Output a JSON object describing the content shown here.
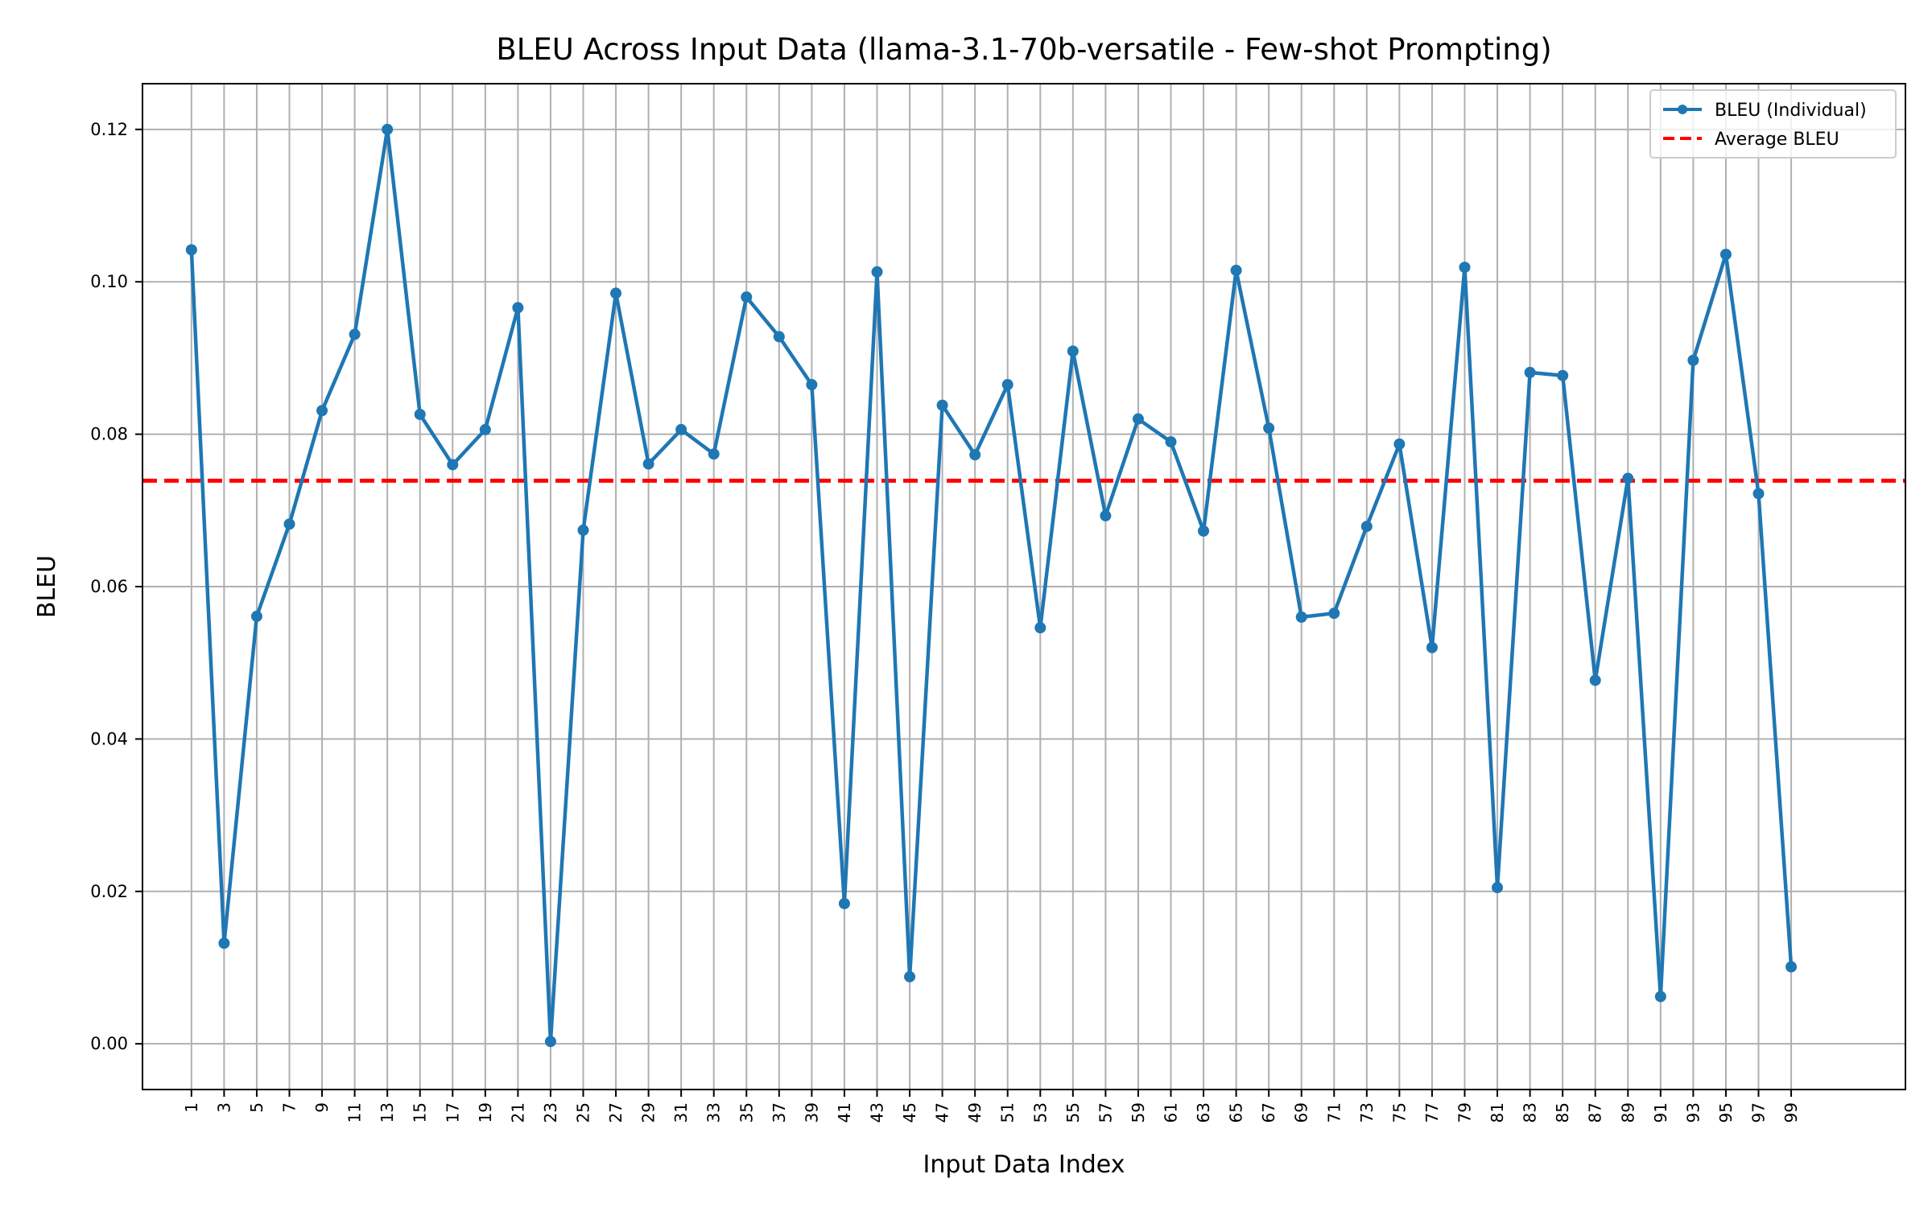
{
  "chart_data": {
    "type": "line",
    "title": "BLEU Across Input Data (llama-3.1-70b-versatile - Few-shot Prompting)",
    "xlabel": "Input Data Index",
    "ylabel": "BLEU",
    "xlim": [
      -1.5,
      52.5
    ],
    "ylim": [
      -0.006,
      0.126
    ],
    "x_tick_labels": [
      "1",
      "3",
      "5",
      "7",
      "9",
      "11",
      "13",
      "15",
      "17",
      "19",
      "21",
      "23",
      "25",
      "27",
      "29",
      "31",
      "33",
      "35",
      "37",
      "39",
      "41",
      "43",
      "45",
      "47",
      "49",
      "51",
      "53",
      "55",
      "57",
      "59",
      "61",
      "63",
      "65",
      "67",
      "69",
      "71",
      "73",
      "75",
      "77",
      "79",
      "81",
      "83",
      "85",
      "87",
      "89",
      "91",
      "93",
      "95",
      "97",
      "99"
    ],
    "y_ticks": [
      0.0,
      0.02,
      0.04,
      0.06,
      0.08,
      0.1,
      0.12
    ],
    "y_tick_labels": [
      "0.00",
      "0.02",
      "0.04",
      "0.06",
      "0.08",
      "0.10",
      "0.12"
    ],
    "grid": true,
    "legend_position": "top-right",
    "series": [
      {
        "name": "BLEU (Individual)",
        "kind": "line-with-markers",
        "color": "#1f77b4",
        "values": [
          0.1042,
          0.0132,
          0.0561,
          0.0682,
          0.0831,
          0.0931,
          0.12,
          0.0826,
          0.076,
          0.0806,
          0.0966,
          0.0003,
          0.0674,
          0.0985,
          0.0761,
          0.0806,
          0.0774,
          0.098,
          0.0928,
          0.0865,
          0.0184,
          0.1013,
          0.0088,
          0.0838,
          0.0773,
          0.0865,
          0.0546,
          0.0909,
          0.0693,
          0.082,
          0.079,
          0.0673,
          0.1015,
          0.0808,
          0.056,
          0.0565,
          0.0679,
          0.0787,
          0.052,
          0.1019,
          0.0205,
          0.0881,
          0.0877,
          0.0477,
          0.0742,
          0.0062,
          0.0897,
          0.1036,
          0.0722,
          0.0101
        ]
      },
      {
        "name": "Average BLEU",
        "kind": "horizontal-dashed",
        "color": "#ff0000",
        "value": 0.0739
      }
    ]
  }
}
